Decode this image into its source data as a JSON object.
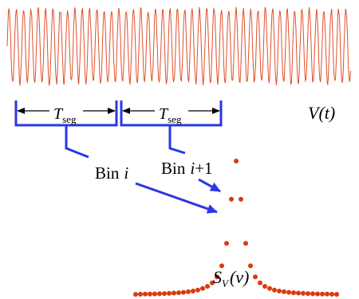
{
  "labels": {
    "segment_symbol": "T",
    "segment_subscript": "seg",
    "signal": "V(t)",
    "bin_i_word": "Bin",
    "bin_i_index": "i",
    "bin_i1_word": "Bin",
    "bin_i1_index": "i",
    "bin_i1_suffix": "+1",
    "spectrum_symbol": "S",
    "spectrum_subscript": "V",
    "spectrum_argument": "(ν)"
  },
  "colors": {
    "signal": "#e0502a",
    "brackets": "#2a37e6",
    "points": "#d83a0f"
  }
}
